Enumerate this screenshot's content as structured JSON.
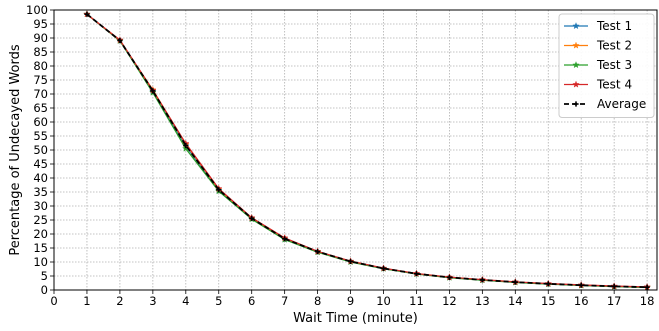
{
  "chart_data": {
    "type": "line",
    "xlabel": "Wait Time (minute)",
    "ylabel": "Percentage of Undecayed Words",
    "xlim": [
      0,
      18.3
    ],
    "ylim": [
      0,
      100
    ],
    "xticks": [
      0,
      1,
      2,
      3,
      4,
      5,
      6,
      7,
      8,
      9,
      10,
      11,
      12,
      13,
      14,
      15,
      16,
      17,
      18
    ],
    "yticks": [
      0,
      5,
      10,
      15,
      20,
      25,
      30,
      35,
      40,
      45,
      50,
      55,
      60,
      65,
      70,
      75,
      80,
      85,
      90,
      95,
      100
    ],
    "grid": true,
    "legend_position": "top-right",
    "x": [
      1,
      2,
      3,
      4,
      5,
      6,
      7,
      8,
      9,
      10,
      11,
      12,
      13,
      14,
      15,
      16,
      17,
      18
    ],
    "series": [
      {
        "name": "Test 1",
        "color": "#1f77b4",
        "marker": "star",
        "dashed": false,
        "values": [
          98.5,
          89.0,
          71.0,
          51.5,
          35.5,
          25.5,
          18.2,
          13.6,
          10.1,
          7.7,
          5.8,
          4.5,
          3.6,
          2.8,
          2.2,
          1.7,
          1.3,
          1.0
        ]
      },
      {
        "name": "Test 2",
        "color": "#ff7f0e",
        "marker": "star",
        "dashed": false,
        "values": [
          98.5,
          89.0,
          71.5,
          52.0,
          36.0,
          25.7,
          18.5,
          13.7,
          10.2,
          7.7,
          5.8,
          4.5,
          3.6,
          2.8,
          2.2,
          1.7,
          1.3,
          1.0
        ]
      },
      {
        "name": "Test 3",
        "color": "#2ca02c",
        "marker": "star",
        "dashed": false,
        "values": [
          98.5,
          89.0,
          70.5,
          50.5,
          35.3,
          25.3,
          18.0,
          13.5,
          10.0,
          7.6,
          5.7,
          4.4,
          3.5,
          2.7,
          2.1,
          1.6,
          1.2,
          0.9
        ]
      },
      {
        "name": "Test 4",
        "color": "#d62728",
        "marker": "star",
        "dashed": false,
        "values": [
          98.5,
          89.3,
          71.3,
          52.3,
          36.2,
          25.8,
          18.6,
          13.8,
          10.3,
          7.8,
          5.9,
          4.6,
          3.7,
          2.9,
          2.3,
          1.8,
          1.4,
          1.1
        ]
      },
      {
        "name": "Average",
        "color": "#000000",
        "marker": "plus",
        "dashed": true,
        "values": [
          98.5,
          89.1,
          71.1,
          51.6,
          35.8,
          25.6,
          18.3,
          13.7,
          10.2,
          7.7,
          5.8,
          4.5,
          3.6,
          2.8,
          2.2,
          1.7,
          1.3,
          1.0
        ]
      }
    ]
  }
}
